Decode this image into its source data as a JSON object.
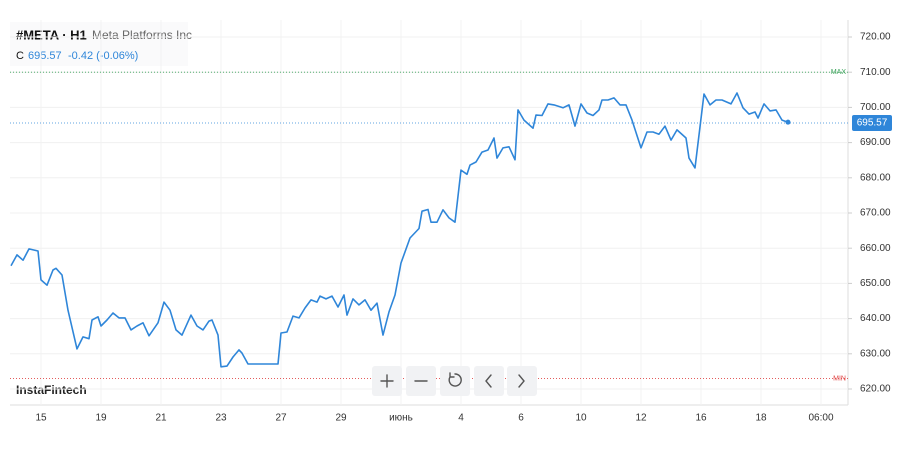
{
  "chart_data": {
    "type": "line",
    "title": "#META · H1",
    "subtitle": "Meta Platforms Inc",
    "close_label": "C",
    "last_price": 695.57,
    "change_label": "-0.42 (-0.06%)",
    "brand": "InstaFintech",
    "color": "#2f86d9",
    "grid": true,
    "levels": [
      {
        "label": "MAX",
        "value": 710,
        "color": "#3aa35a"
      },
      {
        "label": "MIN",
        "value": 623,
        "color": "#e04545"
      }
    ],
    "xlim": [
      0,
      280
    ],
    "xticks": [
      {
        "value": 10,
        "label": "15"
      },
      {
        "value": 30,
        "label": "19"
      },
      {
        "value": 50,
        "label": "21"
      },
      {
        "value": 70,
        "label": "23"
      },
      {
        "value": 90,
        "label": "27"
      },
      {
        "value": 110,
        "label": "29"
      },
      {
        "value": 130,
        "label": "июнь"
      },
      {
        "value": 150,
        "label": "4"
      },
      {
        "value": 170,
        "label": "6"
      },
      {
        "value": 190,
        "label": "10"
      },
      {
        "value": 210,
        "label": "12"
      },
      {
        "value": 230,
        "label": "16"
      },
      {
        "value": 250,
        "label": "18"
      },
      {
        "value": 270,
        "label": "06:00"
      }
    ],
    "ylim": [
      620,
      720
    ],
    "yticks": [
      {
        "value": 620,
        "label": "620.00"
      },
      {
        "value": 630,
        "label": "630.00"
      },
      {
        "value": 640,
        "label": "640.00"
      },
      {
        "value": 650,
        "label": "650.00"
      },
      {
        "value": 660,
        "label": "660.00"
      },
      {
        "value": 670,
        "label": "670.00"
      },
      {
        "value": 680,
        "label": "680.00"
      },
      {
        "value": 690,
        "label": "690.00"
      },
      {
        "value": 700,
        "label": "700.00"
      },
      {
        "value": 710,
        "label": "710.00"
      },
      {
        "value": 720,
        "label": "720.00"
      }
    ],
    "x": [
      0,
      2,
      4,
      6,
      9,
      10,
      12,
      14,
      15,
      17,
      19,
      22,
      24,
      26,
      27,
      29,
      30,
      32,
      34,
      36,
      38,
      40,
      42,
      44,
      46,
      49,
      51,
      53,
      55,
      57,
      60,
      62,
      64,
      66,
      67,
      69,
      70,
      72,
      74,
      76,
      77,
      79,
      83,
      89,
      90,
      92,
      94,
      96,
      98,
      100,
      102,
      103,
      105,
      107,
      109,
      111,
      112,
      114,
      116,
      118,
      120,
      122,
      124,
      126,
      128,
      130,
      133,
      136,
      137,
      139,
      140,
      142,
      144,
      146,
      148,
      150,
      152,
      153,
      155,
      157,
      159,
      161,
      162,
      164,
      166,
      168,
      169,
      171,
      174,
      175,
      177,
      179,
      181,
      184,
      186,
      188,
      190,
      192,
      194,
      196,
      197,
      199,
      201,
      203,
      205,
      207,
      210,
      212,
      214,
      216,
      218,
      220,
      222,
      225,
      226,
      228,
      231,
      233,
      235,
      237,
      240,
      242,
      244,
      246,
      248,
      249,
      251,
      253,
      255,
      257,
      259
    ],
    "values": [
      655.0,
      658.1,
      656.6,
      659.8,
      659.2,
      651.0,
      649.5,
      653.8,
      654.3,
      652.4,
      642.4,
      631.4,
      634.8,
      634.3,
      639.6,
      640.5,
      637.9,
      639.6,
      641.6,
      640.2,
      640.2,
      636.8,
      637.9,
      638.8,
      635.1,
      638.8,
      644.7,
      642.4,
      636.8,
      635.3,
      641.0,
      637.9,
      636.8,
      639.3,
      639.6,
      635.3,
      626.3,
      626.5,
      629.1,
      631.1,
      630.2,
      627.1,
      627.1,
      627.1,
      635.9,
      636.2,
      640.7,
      640.2,
      643.0,
      645.3,
      644.7,
      646.4,
      645.6,
      646.4,
      643.3,
      646.7,
      641.0,
      645.6,
      643.9,
      645.3,
      642.4,
      644.4,
      635.3,
      641.9,
      646.7,
      655.8,
      662.9,
      665.6,
      670.5,
      671.0,
      667.4,
      667.4,
      670.9,
      668.6,
      667.4,
      682.2,
      681.0,
      683.6,
      684.5,
      687.3,
      687.9,
      691.3,
      685.6,
      688.5,
      688.8,
      685.1,
      699.3,
      696.4,
      694.1,
      697.8,
      697.7,
      701.0,
      700.7,
      699.9,
      700.7,
      694.7,
      701.0,
      698.4,
      697.7,
      699.3,
      702.1,
      702.1,
      702.7,
      700.7,
      700.7,
      696.4,
      688.5,
      693.0,
      693.0,
      692.4,
      694.7,
      690.7,
      693.6,
      691.3,
      685.6,
      682.8,
      703.8,
      700.7,
      702.1,
      702.1,
      701.0,
      704.1,
      699.9,
      698.1,
      698.7,
      697.0,
      701.0,
      699.0,
      699.3,
      696.4,
      695.8
    ]
  }
}
